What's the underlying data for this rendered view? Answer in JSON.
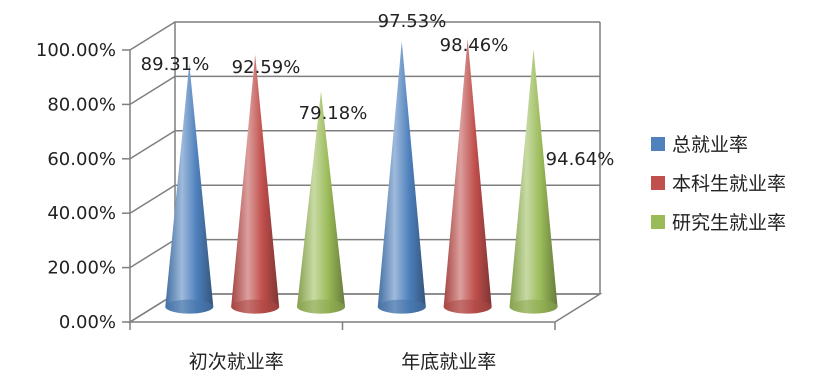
{
  "chart_data": {
    "type": "bar",
    "style": "3d-cone",
    "categories": [
      "初次就业率",
      "年底就业率"
    ],
    "series": [
      {
        "name": "总就业率",
        "values": [
          89.31,
          97.53
        ],
        "color": "#4F81BD"
      },
      {
        "name": "本科生就业率",
        "values": [
          92.59,
          98.46
        ],
        "color": "#C0504D"
      },
      {
        "name": "研究生就业率",
        "values": [
          79.18,
          94.64
        ],
        "color": "#9BBB59"
      }
    ],
    "data_labels": [
      [
        "89.31%",
        "97.53%"
      ],
      [
        "92.59%",
        "98.46%"
      ],
      [
        "79.18%",
        "94.64%"
      ]
    ],
    "y_tick_labels": [
      "0.00%",
      "20.00%",
      "40.00%",
      "60.00%",
      "80.00%",
      "100.00%"
    ],
    "ylim": [
      0,
      100
    ],
    "grid": true,
    "legend_position": "right"
  }
}
